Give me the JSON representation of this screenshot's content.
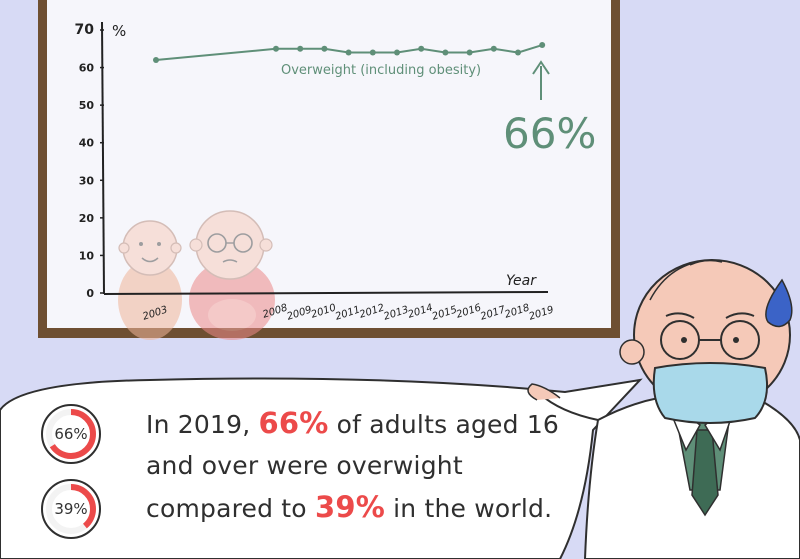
{
  "chart_data": {
    "type": "line",
    "y_unit": "%",
    "xlabel": "Year",
    "ylim": [
      0,
      70
    ],
    "y_ticks": [
      0,
      10,
      20,
      30,
      40,
      50,
      60,
      70
    ],
    "x": [
      "2003",
      "2008",
      "2009",
      "2010",
      "2011",
      "2012",
      "2013",
      "2014",
      "2015",
      "2016",
      "2017",
      "2018",
      "2019"
    ],
    "series": [
      {
        "name": "Overweight (including obesity)",
        "values": [
          62,
          65,
          65,
          65,
          64,
          64,
          64,
          65,
          64,
          64,
          65,
          64,
          66
        ],
        "color": "#5f8f78"
      }
    ],
    "annotation": "66%",
    "grid": false
  },
  "caption": {
    "line1_pre": "In 2019, ",
    "line1_highlight": "66%",
    "line1_post": " of adults aged 16",
    "line2": "and over were overwight",
    "line3_pre": "compared to ",
    "line3_highlight": "39%",
    "line3_post": " in the world."
  },
  "badges": [
    {
      "label": "66%",
      "value": 66
    },
    {
      "label": "39%",
      "value": 39
    }
  ],
  "colors": {
    "background": "#d7daf5",
    "board_frame": "#6e4f32",
    "board": "#f6f6fb",
    "line": "#5f8f78",
    "highlight": "#ec4a4a",
    "coat": "#ffffff",
    "shirt": "#5f8f78",
    "tie": "#3e6b55",
    "mask": "#a9d9ea",
    "sweat": "#3b63c7",
    "skin": "#f5c9b8",
    "baby": "#f0b59a"
  }
}
